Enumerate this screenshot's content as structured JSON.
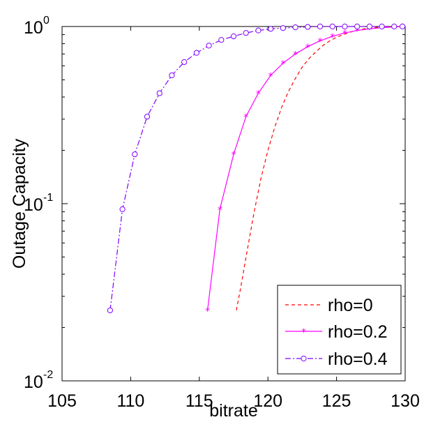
{
  "chart_data": {
    "type": "line",
    "xlabel": "bitrate",
    "ylabel": "Outage Capacity",
    "xlim": [
      105,
      130
    ],
    "ylim": [
      0.01,
      1
    ],
    "yscale": "log",
    "grid": false,
    "legend_position": "bottom-right",
    "xticks": [
      "105",
      "110",
      "115",
      "120",
      "125",
      "130"
    ],
    "yticks": [
      {
        "base": "10",
        "exp": "-2"
      },
      {
        "base": "10",
        "exp": "-1"
      },
      {
        "base": "10",
        "exp": "0"
      }
    ],
    "series": [
      {
        "name": "rho=0",
        "color": "#ff0000",
        "line_style": "dashed",
        "marker": "none",
        "x": [
          117.7,
          118.0,
          118.5,
          119.0,
          119.5,
          120.0,
          120.5,
          121.0,
          121.5,
          122.0,
          122.5,
          123.0,
          123.5,
          124.0,
          124.5,
          125.0,
          125.5,
          126.0,
          126.5,
          127.0,
          127.5,
          128.0,
          129.0,
          129.7
        ],
        "y": [
          0.025,
          0.033,
          0.055,
          0.09,
          0.14,
          0.2,
          0.27,
          0.35,
          0.43,
          0.51,
          0.59,
          0.66,
          0.72,
          0.78,
          0.83,
          0.87,
          0.9,
          0.93,
          0.95,
          0.97,
          0.98,
          0.99,
          0.995,
          1.0
        ]
      },
      {
        "name": "rho=0.2",
        "color": "#ff00ff",
        "line_style": "solid",
        "marker": "star",
        "x": [
          115.6,
          116.5,
          117.5,
          118.4,
          119.3,
          120.2,
          121.1,
          122.0,
          122.9,
          123.8,
          124.7,
          125.6,
          126.5,
          127.4,
          128.3,
          129.2,
          129.8
        ],
        "y": [
          0.025,
          0.093,
          0.19,
          0.31,
          0.42,
          0.53,
          0.62,
          0.7,
          0.77,
          0.83,
          0.88,
          0.92,
          0.95,
          0.97,
          0.985,
          0.995,
          1.0
        ]
      },
      {
        "name": "rho=0.4",
        "color": "#8000ff",
        "line_style": "dashdot",
        "marker": "circle",
        "x": [
          108.5,
          109.4,
          110.3,
          111.2,
          112.1,
          113.0,
          113.9,
          114.8,
          115.7,
          116.6,
          117.5,
          118.4,
          119.3,
          120.2,
          121.1,
          122.0,
          122.9,
          123.8,
          124.7,
          125.6,
          126.5,
          127.4,
          128.3,
          129.2,
          129.8
        ],
        "y": [
          0.025,
          0.093,
          0.19,
          0.31,
          0.42,
          0.53,
          0.63,
          0.71,
          0.78,
          0.84,
          0.88,
          0.92,
          0.95,
          0.97,
          0.98,
          0.99,
          0.995,
          1.0,
          1.0,
          1.0,
          1.0,
          1.0,
          1.0,
          1.0,
          1.0
        ]
      }
    ]
  }
}
